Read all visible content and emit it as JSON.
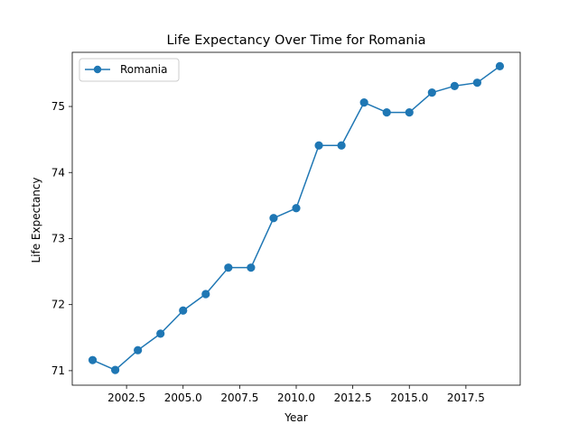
{
  "chart_data": {
    "type": "line",
    "title": "Life Expectancy Over Time for Romania",
    "xlabel": "Year",
    "ylabel": "Life Expectancy",
    "xlim": [
      2000.1,
      2019.9
    ],
    "ylim": [
      70.78,
      75.82
    ],
    "xticks": [
      2002.5,
      2005.0,
      2007.5,
      2010.0,
      2012.5,
      2015.0,
      2017.5
    ],
    "xtick_labels": [
      "2002.5",
      "2005.0",
      "2007.5",
      "2010.0",
      "2012.5",
      "2015.0",
      "2017.5"
    ],
    "yticks": [
      71,
      72,
      73,
      74,
      75
    ],
    "ytick_labels": [
      "71",
      "72",
      "73",
      "74",
      "75"
    ],
    "grid": false,
    "legend": "upper-left",
    "series": [
      {
        "name": "Romania",
        "color": "#1f77b4",
        "marker": "circle",
        "x": [
          2001,
          2002,
          2003,
          2004,
          2005,
          2006,
          2007,
          2008,
          2009,
          2010,
          2011,
          2012,
          2013,
          2014,
          2015,
          2016,
          2017,
          2018,
          2019
        ],
        "y": [
          71.16,
          71.01,
          71.31,
          71.56,
          71.91,
          72.16,
          72.56,
          72.56,
          73.31,
          73.46,
          74.41,
          74.41,
          75.06,
          74.91,
          74.91,
          75.21,
          75.31,
          75.36,
          75.61
        ]
      }
    ]
  }
}
